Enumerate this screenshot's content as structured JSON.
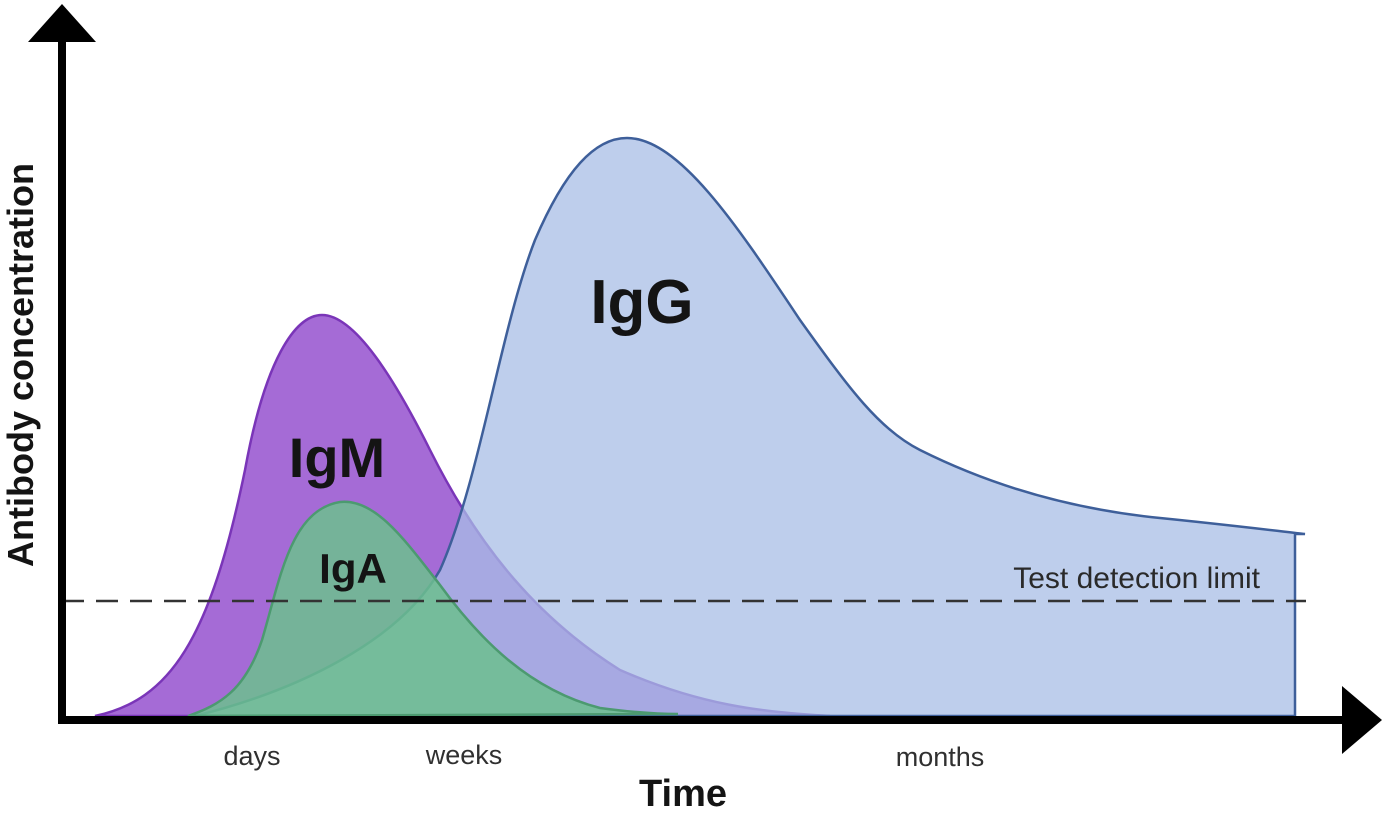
{
  "diagram": {
    "y_axis_label": "Antibody concentration",
    "x_axis_label": "Time",
    "time_ticks": [
      {
        "label": "days"
      },
      {
        "label": "weeks"
      },
      {
        "label": "months"
      }
    ],
    "threshold": {
      "label": "Test detection limit"
    },
    "curves": {
      "igm": {
        "label": "IgM",
        "fill": "#a56bd6",
        "stroke": "#7a35b8"
      },
      "igg": {
        "label": "IgG",
        "fill": "#a8bde6",
        "stroke": "#3e5f9a"
      },
      "iga": {
        "label": "IgA",
        "fill": "#6cbf8e",
        "stroke": "#4c9a70"
      }
    },
    "colors": {
      "axis": "#000000",
      "threshold_line": "#333333"
    }
  }
}
